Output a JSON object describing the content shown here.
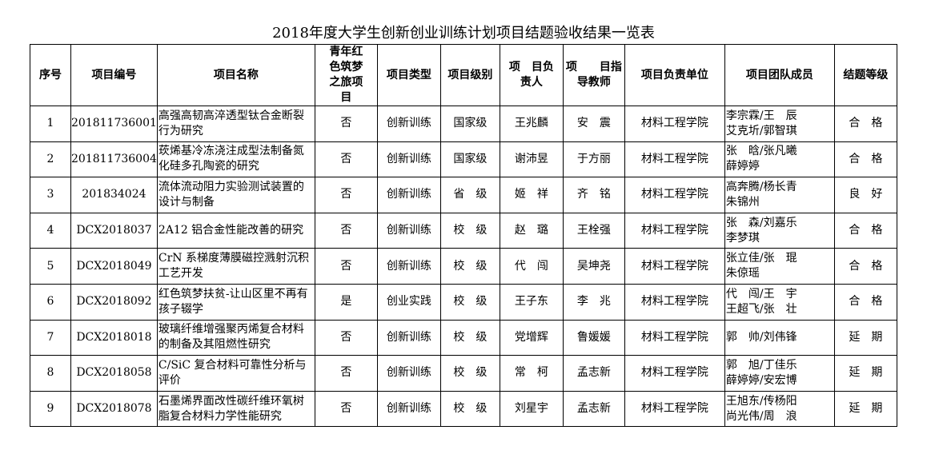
{
  "title": "2018年度大学生创新创业训练计划项目结题验收结果一览表",
  "headers": [
    "序号",
    "项目编号",
    "项目名称",
    "青年红色筑梦之旅项目",
    "项目类型",
    "项目级别",
    "项　目负责人",
    "项　　目指导教师",
    "项目负责单位",
    "项目团队成员",
    "结题等级"
  ],
  "rows": [
    {
      "no": "1",
      "code": "201811736001",
      "name": "高强高韧高淬透型钛合金断裂行为研究",
      "red": "否",
      "type": "创新训练",
      "level": "国家级",
      "leader": "王兆麟",
      "teacher": "安　震",
      "unit": "材料工程学院",
      "members": [
        "李宗霖/王　辰",
        "艾克圻/郭智琪"
      ],
      "grade": "合　格"
    },
    {
      "no": "2",
      "code": "201811736004",
      "name": "莰烯基冷冻浇注成型法制备氮化硅多孔陶瓷的研究",
      "red": "否",
      "type": "创新训练",
      "level": "国家级",
      "leader": "谢沛昱",
      "teacher": "于方丽",
      "unit": "材料工程学院",
      "members": [
        "张　晗/张凡曦",
        "薛婷婷"
      ],
      "grade": "合　格"
    },
    {
      "no": "3",
      "code": "201834024",
      "name": "流体流动阻力实验测试装置的设计与制备",
      "red": "否",
      "type": "创新训练",
      "level": "省　级",
      "leader": "姬　祥",
      "teacher": "齐　铭",
      "unit": "材料工程学院",
      "members": [
        "高奔腾/杨长青",
        "朱锦州"
      ],
      "grade": "良　好"
    },
    {
      "no": "4",
      "code": "DCX2018037",
      "name": "2A12 铝合金性能改善的研究",
      "red": "否",
      "type": "创新训练",
      "level": "校　级",
      "leader": "赵　璐",
      "teacher": "王栓强",
      "unit": "材料工程学院",
      "members": [
        "张　森/刘嘉乐",
        "李梦琪"
      ],
      "grade": "合　格"
    },
    {
      "no": "5",
      "code": "DCX2018049",
      "name": "CrN 系梯度薄膜磁控溅射沉积工艺开发",
      "red": "否",
      "type": "创新训练",
      "level": "校　级",
      "leader": "代　闯",
      "teacher": "吴坤尧",
      "unit": "材料工程学院",
      "members": [
        "张立佳/张　琨",
        "朱倞瑶"
      ],
      "grade": "合　格"
    },
    {
      "no": "6",
      "code": "DCX2018092",
      "name": "红色筑梦扶贫-让山区里不再有孩子辍学",
      "red": "是",
      "type": "创业实践",
      "level": "校　级",
      "leader": "王子东",
      "teacher": "李　兆",
      "unit": "材料工程学院",
      "members": [
        "代　闯/王　宇",
        "王超飞/张　壮"
      ],
      "grade": "合　格"
    },
    {
      "no": "7",
      "code": "DCX2018018",
      "name": "玻璃纤维增强聚丙烯复合材料的制备及其阻燃性研究",
      "red": "否",
      "type": "创新训练",
      "level": "校　级",
      "leader": "党增辉",
      "teacher": "鲁媛媛",
      "unit": "材料工程学院",
      "members": [
        "郭　帅/刘伟锋"
      ],
      "grade": "延　期"
    },
    {
      "no": "8",
      "code": "DCX2018058",
      "name": "C/SiC 复合材料可靠性分析与评价",
      "red": "否",
      "type": "创新训练",
      "level": "校　级",
      "leader": "常　柯",
      "teacher": "孟志新",
      "unit": "材料工程学院",
      "members": [
        "郭　旭/丁佳乐",
        "薛婷婷/安宏博"
      ],
      "grade": "延　期"
    },
    {
      "no": "9",
      "code": "DCX2018078",
      "name": "石墨烯界面改性碳纤维环氧树脂复合材料力学性能研究",
      "red": "否",
      "type": "创新训练",
      "level": "校　级",
      "leader": "刘星宇",
      "teacher": "孟志新",
      "unit": "材料工程学院",
      "members": [
        "王旭东/传杨阳",
        "尚光伟/周　浪"
      ],
      "grade": "延　期"
    }
  ]
}
